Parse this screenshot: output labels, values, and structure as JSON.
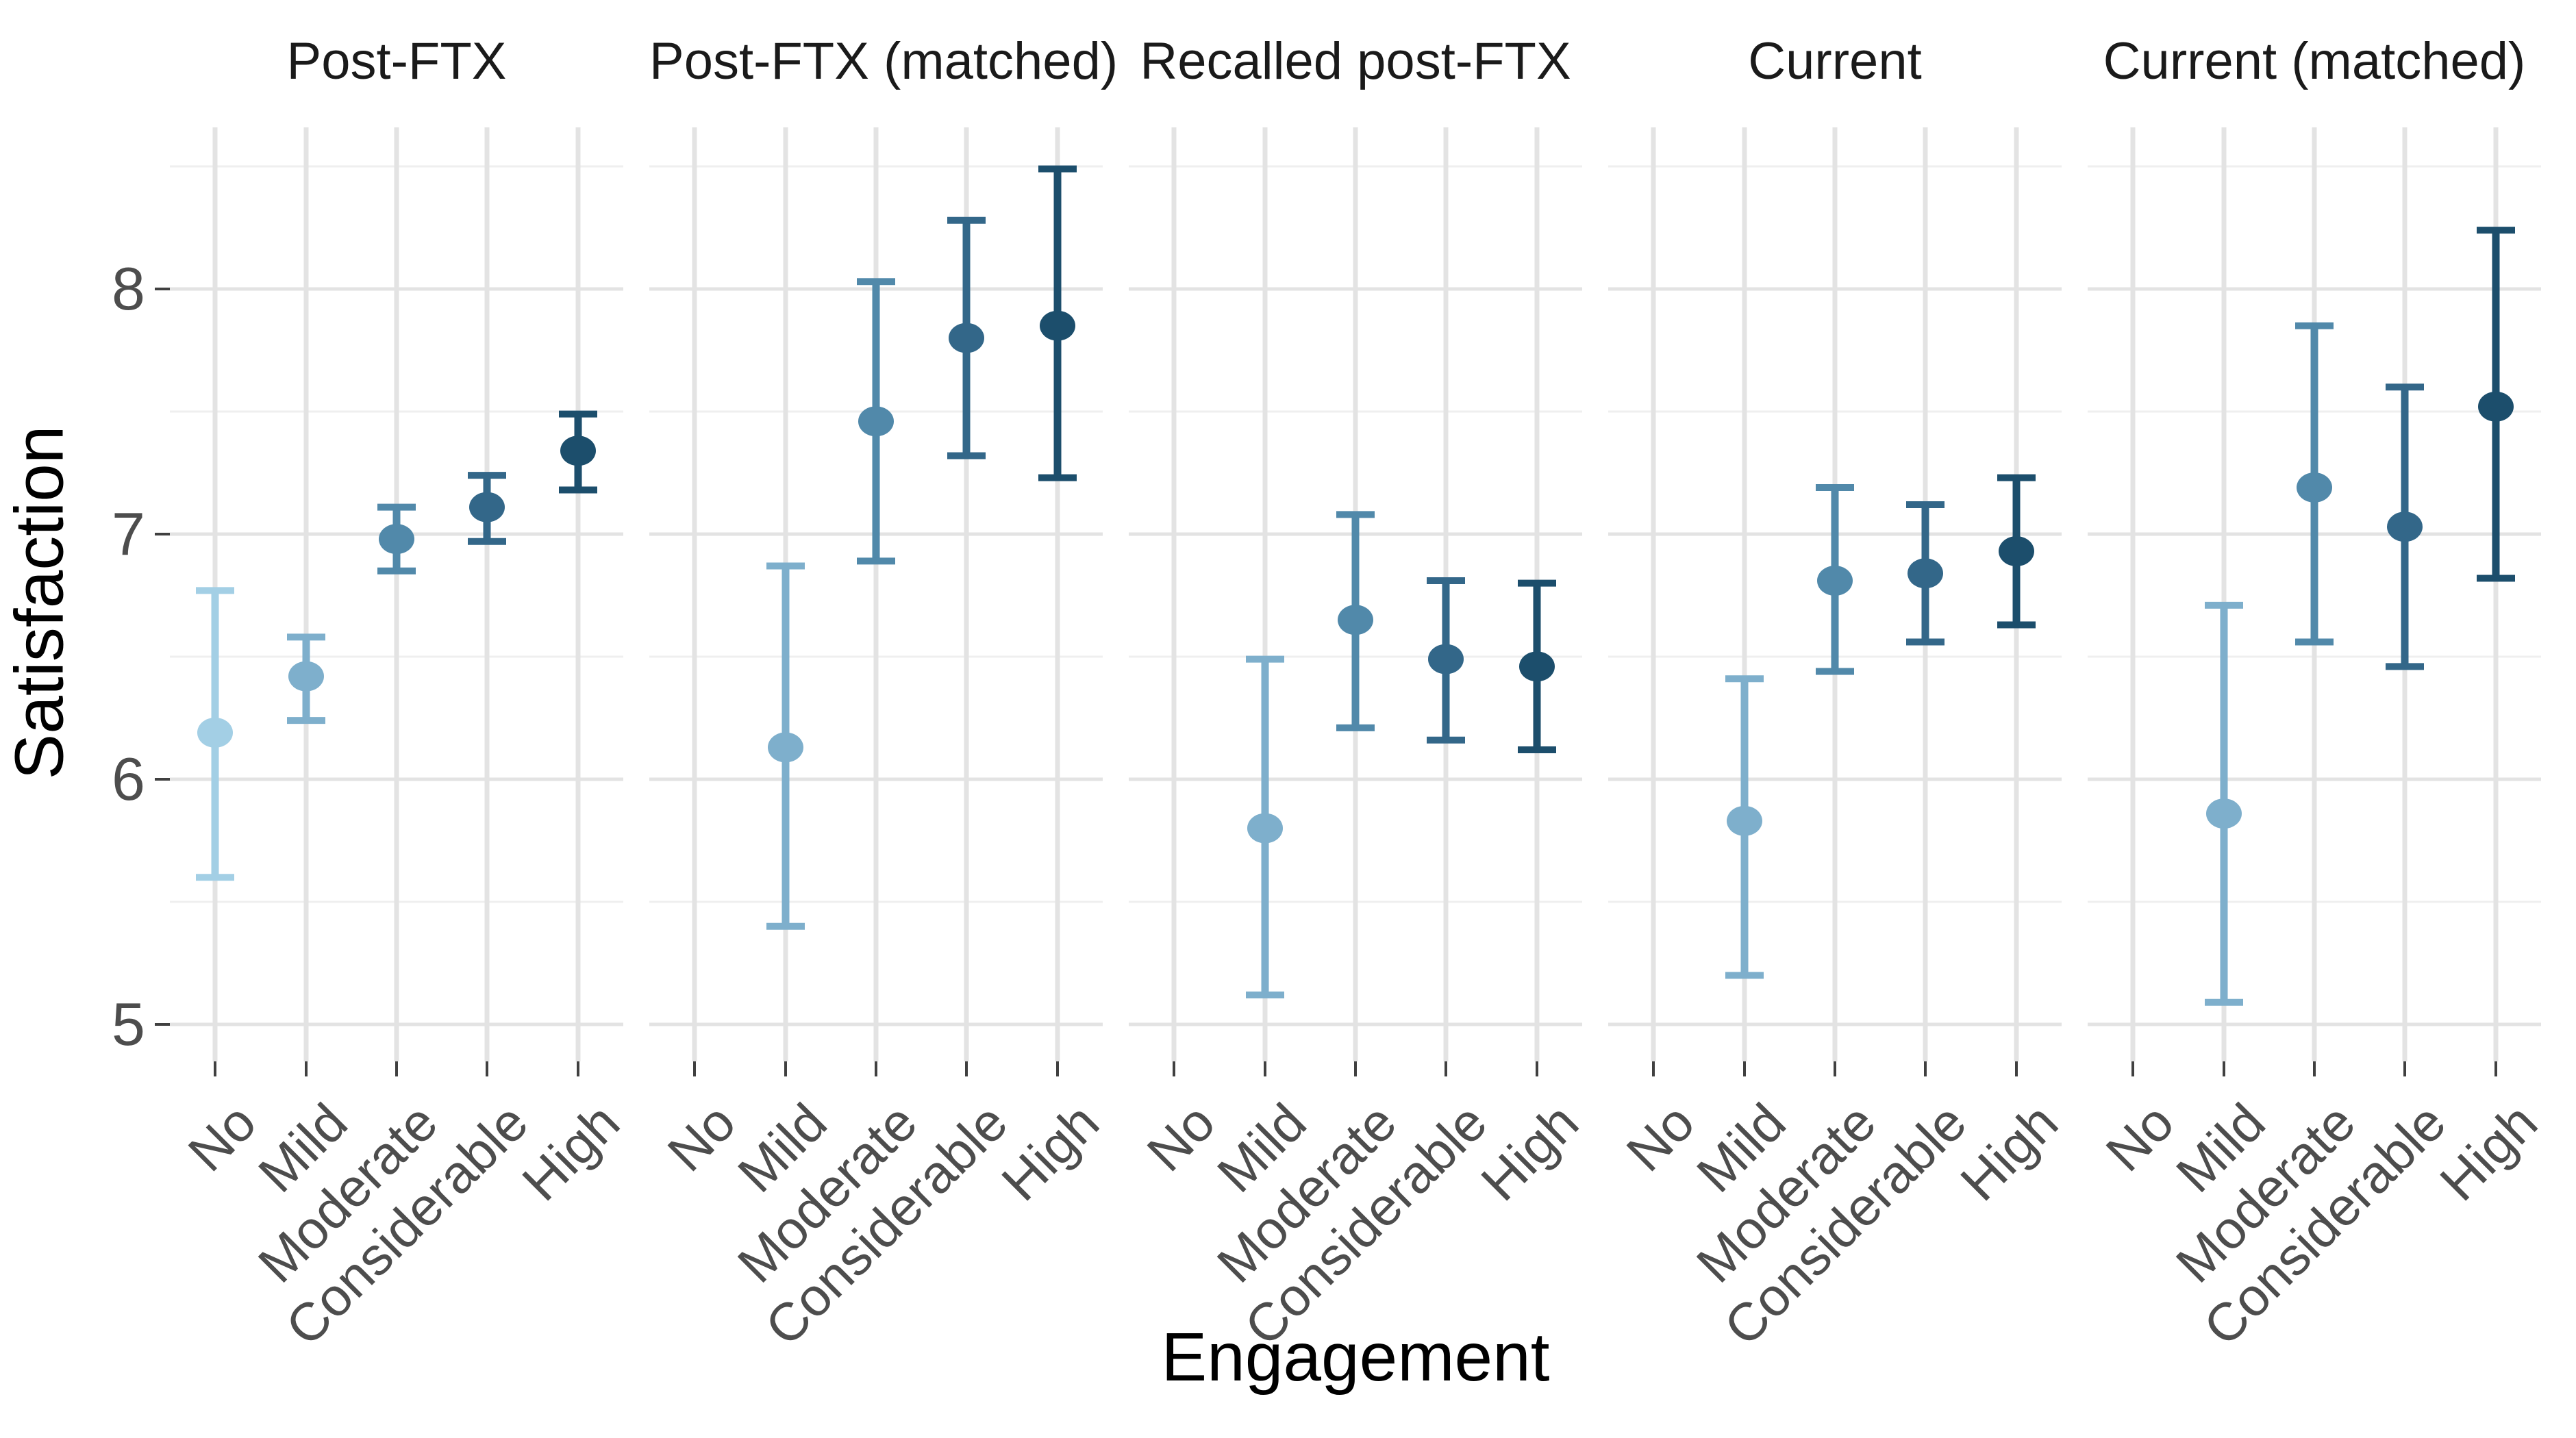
{
  "chart_data": {
    "type": "pointrange",
    "title": "",
    "xlabel": "Engagement",
    "ylabel": "Satisfaction",
    "ylim": [
      4.85,
      8.66
    ],
    "yticks": [
      8,
      7,
      6,
      5
    ],
    "yticks_minor": [
      8.5,
      7.5,
      6.5,
      5.5
    ],
    "grid": "on",
    "legend": "none",
    "categories": [
      "No",
      "Mild",
      "Moderate",
      "Considerable",
      "High"
    ],
    "category_colors": [
      "#A3CFE5",
      "#7EAFCC",
      "#5189AA",
      "#336789",
      "#1C4E6C"
    ],
    "axis_text_color": "#4d4d4d",
    "panels": [
      {
        "title": "Post-FTX",
        "points": [
          {
            "cat": "No",
            "mean": 6.19,
            "lo": 5.6,
            "hi": 6.77
          },
          {
            "cat": "Mild",
            "mean": 6.42,
            "lo": 6.24,
            "hi": 6.58
          },
          {
            "cat": "Moderate",
            "mean": 6.98,
            "lo": 6.85,
            "hi": 7.11
          },
          {
            "cat": "Considerable",
            "mean": 7.11,
            "lo": 6.97,
            "hi": 7.24
          },
          {
            "cat": "High",
            "mean": 7.34,
            "lo": 7.18,
            "hi": 7.49
          }
        ]
      },
      {
        "title": "Post-FTX (matched)",
        "points": [
          {
            "cat": "Mild",
            "mean": 6.13,
            "lo": 5.4,
            "hi": 6.87
          },
          {
            "cat": "Moderate",
            "mean": 7.46,
            "lo": 6.89,
            "hi": 8.03
          },
          {
            "cat": "Considerable",
            "mean": 7.8,
            "lo": 7.32,
            "hi": 8.28
          },
          {
            "cat": "High",
            "mean": 7.85,
            "lo": 7.23,
            "hi": 8.49
          }
        ]
      },
      {
        "title": "Recalled post-FTX",
        "points": [
          {
            "cat": "Mild",
            "mean": 5.8,
            "lo": 5.12,
            "hi": 6.49
          },
          {
            "cat": "Moderate",
            "mean": 6.65,
            "lo": 6.21,
            "hi": 7.08
          },
          {
            "cat": "Considerable",
            "mean": 6.49,
            "lo": 6.16,
            "hi": 6.81
          },
          {
            "cat": "High",
            "mean": 6.46,
            "lo": 6.12,
            "hi": 6.8
          }
        ]
      },
      {
        "title": "Current",
        "points": [
          {
            "cat": "Mild",
            "mean": 5.83,
            "lo": 5.2,
            "hi": 6.41
          },
          {
            "cat": "Moderate",
            "mean": 6.81,
            "lo": 6.44,
            "hi": 7.19
          },
          {
            "cat": "Considerable",
            "mean": 6.84,
            "lo": 6.56,
            "hi": 7.12
          },
          {
            "cat": "High",
            "mean": 6.93,
            "lo": 6.63,
            "hi": 7.23
          }
        ]
      },
      {
        "title": "Current (matched)",
        "points": [
          {
            "cat": "Mild",
            "mean": 5.86,
            "lo": 5.09,
            "hi": 6.71
          },
          {
            "cat": "Moderate",
            "mean": 7.19,
            "lo": 6.56,
            "hi": 7.85
          },
          {
            "cat": "Considerable",
            "mean": 7.03,
            "lo": 6.46,
            "hi": 7.6
          },
          {
            "cat": "High",
            "mean": 7.52,
            "lo": 6.82,
            "hi": 8.24
          }
        ]
      }
    ]
  }
}
